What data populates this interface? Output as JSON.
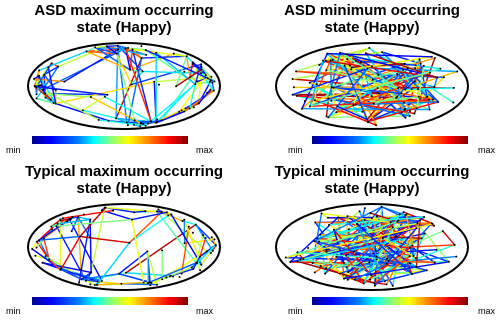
{
  "panels": [
    {
      "title_line1": "ASD maximum occurring",
      "title_line2": "state (Happy)",
      "pattern": "peripheral",
      "density": 1.0
    },
    {
      "title_line1": "ASD minimum occurring",
      "title_line2": "state (Happy)",
      "pattern": "across",
      "density": 1.0
    },
    {
      "title_line1": "Typical maximum occurring",
      "title_line2": "state (Happy)",
      "pattern": "peripheral",
      "density": 0.85
    },
    {
      "title_line1": "Typical minimum occurring",
      "title_line2": "state (Happy)",
      "pattern": "across",
      "density": 1.2
    }
  ],
  "colorbar": {
    "min_label": "min",
    "max_label": "max"
  },
  "colors": {
    "outline": "#000000",
    "node": "#000000"
  }
}
